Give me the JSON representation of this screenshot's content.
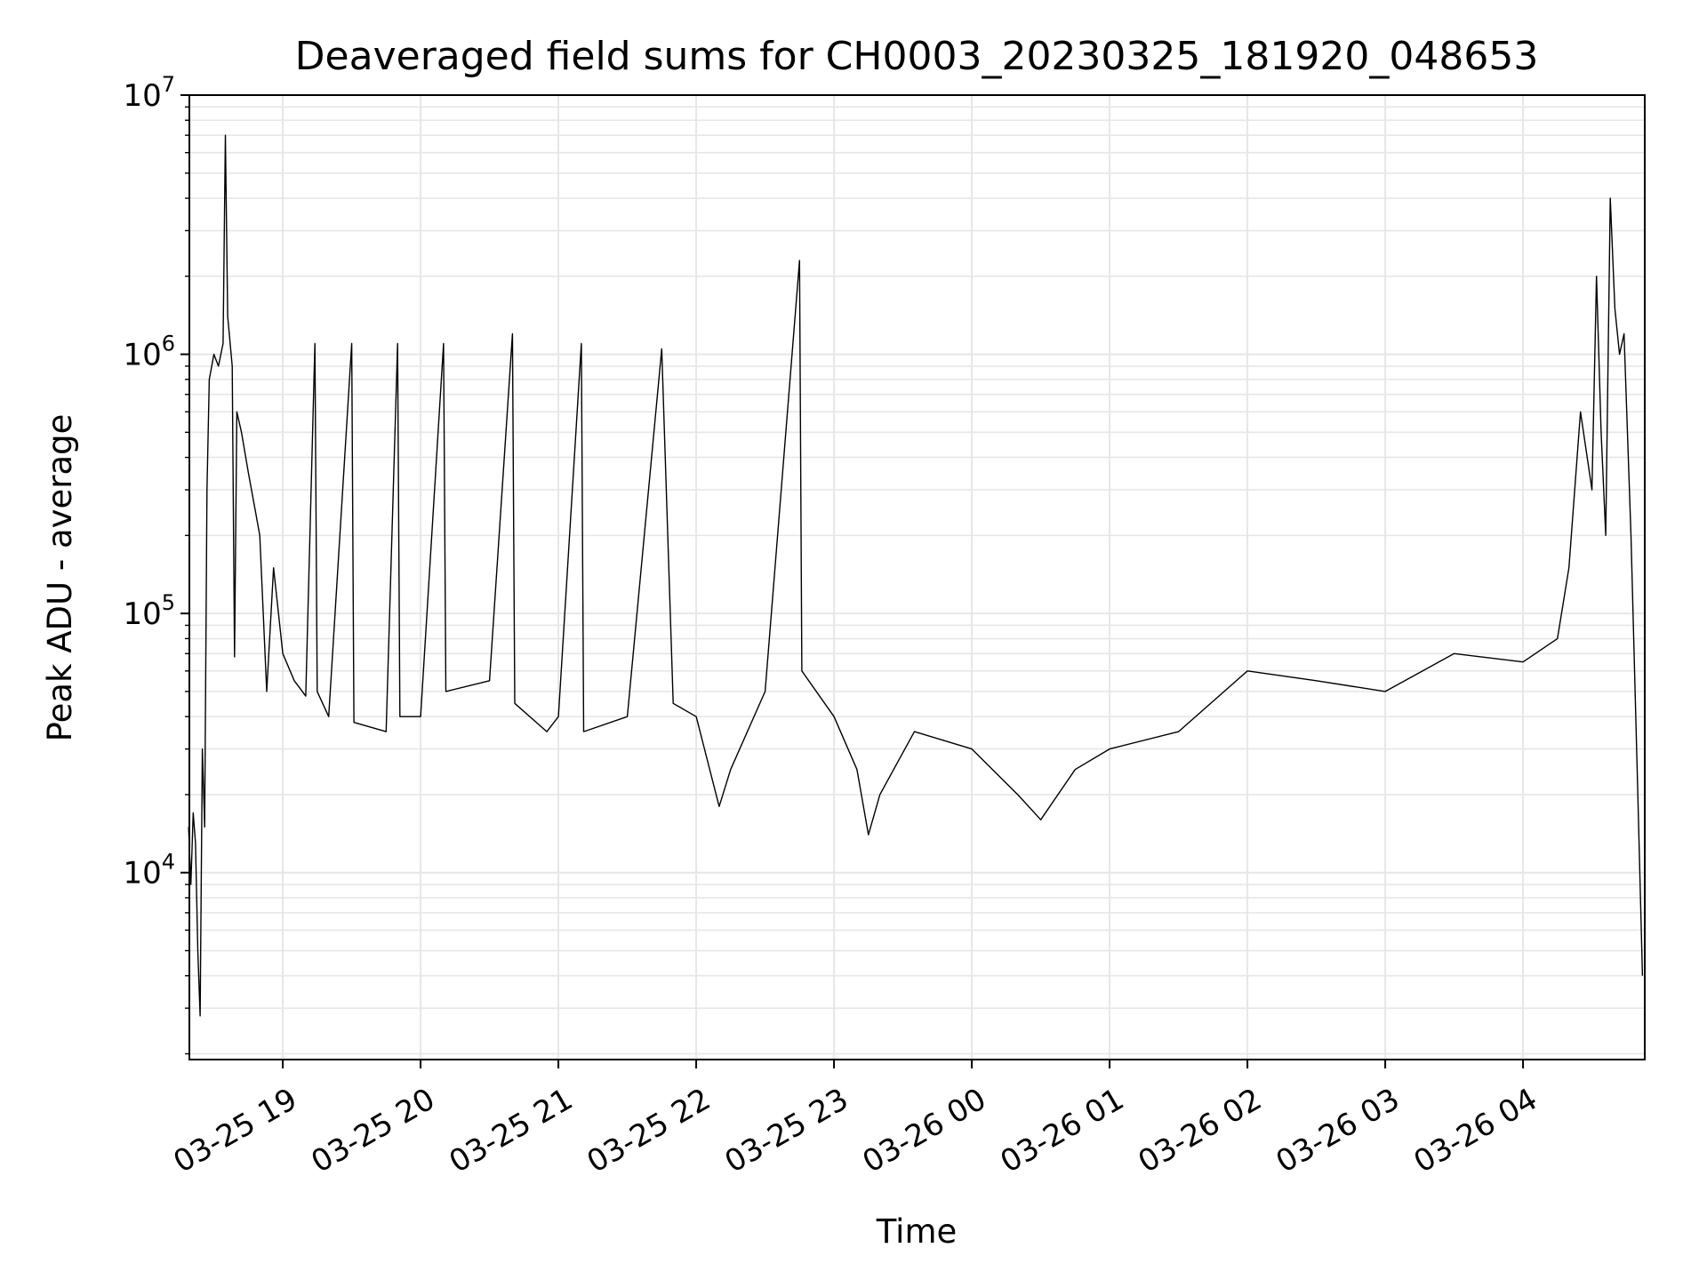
{
  "chart_data": {
    "type": "line",
    "title": "Deaveraged field sums for CH0003_20230325_181920_048653",
    "xlabel": "Time",
    "ylabel": "Peak ADU - average",
    "yscale": "log",
    "ylim": [
      1900,
      10000000
    ],
    "xlim": [
      "2023-03-25 18:19:20",
      "2023-03-26 04:53:00"
    ],
    "grid": "major and minor, light gray",
    "line_color": "#000000",
    "x_ticks": [
      {
        "at": "2023-03-25 19:00",
        "label": "03-25 19"
      },
      {
        "at": "2023-03-25 20:00",
        "label": "03-25 20"
      },
      {
        "at": "2023-03-25 21:00",
        "label": "03-25 21"
      },
      {
        "at": "2023-03-25 22:00",
        "label": "03-25 22"
      },
      {
        "at": "2023-03-25 23:00",
        "label": "03-25 23"
      },
      {
        "at": "2023-03-26 00:00",
        "label": "03-26 00"
      },
      {
        "at": "2023-03-26 01:00",
        "label": "03-26 01"
      },
      {
        "at": "2023-03-26 02:00",
        "label": "03-26 02"
      },
      {
        "at": "2023-03-26 03:00",
        "label": "03-26 03"
      },
      {
        "at": "2023-03-26 04:00",
        "label": "03-26 04"
      }
    ],
    "y_ticks": [
      {
        "value": 10000,
        "base": "10",
        "exp": "4"
      },
      {
        "value": 100000,
        "base": "10",
        "exp": "5"
      },
      {
        "value": 1000000,
        "base": "10",
        "exp": "6"
      },
      {
        "value": 10000000,
        "base": "10",
        "exp": "7"
      }
    ],
    "series": [
      {
        "points": [
          [
            "2023-03-25 18:19",
            15000
          ],
          [
            "2023-03-25 18:20",
            9000
          ],
          [
            "2023-03-25 18:21",
            17000
          ],
          [
            "2023-03-25 18:22",
            13000
          ],
          [
            "2023-03-25 18:23",
            5000
          ],
          [
            "2023-03-25 18:24",
            2800
          ],
          [
            "2023-03-25 18:25",
            30000
          ],
          [
            "2023-03-25 18:26",
            15000
          ],
          [
            "2023-03-25 18:27",
            300000
          ],
          [
            "2023-03-25 18:28",
            800000
          ],
          [
            "2023-03-25 18:30",
            1000000
          ],
          [
            "2023-03-25 18:32",
            900000
          ],
          [
            "2023-03-25 18:34",
            1100000
          ],
          [
            "2023-03-25 18:35",
            7000000
          ],
          [
            "2023-03-25 18:36",
            1400000
          ],
          [
            "2023-03-25 18:38",
            900000
          ],
          [
            "2023-03-25 18:39",
            68000
          ],
          [
            "2023-03-25 18:40",
            600000
          ],
          [
            "2023-03-25 18:42",
            500000
          ],
          [
            "2023-03-25 18:45",
            350000
          ],
          [
            "2023-03-25 18:48",
            250000
          ],
          [
            "2023-03-25 18:50",
            200000
          ],
          [
            "2023-03-25 18:53",
            50000
          ],
          [
            "2023-03-25 18:56",
            150000
          ],
          [
            "2023-03-25 19:00",
            70000
          ],
          [
            "2023-03-25 19:05",
            55000
          ],
          [
            "2023-03-25 19:10",
            48000
          ],
          [
            "2023-03-25 19:14",
            1100000
          ],
          [
            "2023-03-25 19:15",
            50000
          ],
          [
            "2023-03-25 19:20",
            40000
          ],
          [
            "2023-03-25 19:30",
            1100000
          ],
          [
            "2023-03-25 19:31",
            38000
          ],
          [
            "2023-03-25 19:45",
            35000
          ],
          [
            "2023-03-25 19:50",
            1100000
          ],
          [
            "2023-03-25 19:51",
            40000
          ],
          [
            "2023-03-25 20:00",
            40000
          ],
          [
            "2023-03-25 20:10",
            1100000
          ],
          [
            "2023-03-25 20:11",
            50000
          ],
          [
            "2023-03-25 20:30",
            55000
          ],
          [
            "2023-03-25 20:40",
            1200000
          ],
          [
            "2023-03-25 20:41",
            45000
          ],
          [
            "2023-03-25 20:55",
            35000
          ],
          [
            "2023-03-25 21:00",
            40000
          ],
          [
            "2023-03-25 21:10",
            1100000
          ],
          [
            "2023-03-25 21:11",
            35000
          ],
          [
            "2023-03-25 21:30",
            40000
          ],
          [
            "2023-03-25 21:45",
            1050000
          ],
          [
            "2023-03-25 21:50",
            45000
          ],
          [
            "2023-03-25 22:00",
            40000
          ],
          [
            "2023-03-25 22:10",
            18000
          ],
          [
            "2023-03-25 22:15",
            25000
          ],
          [
            "2023-03-25 22:30",
            50000
          ],
          [
            "2023-03-25 22:45",
            2300000
          ],
          [
            "2023-03-25 22:46",
            60000
          ],
          [
            "2023-03-25 23:00",
            40000
          ],
          [
            "2023-03-25 23:10",
            25000
          ],
          [
            "2023-03-25 23:15",
            14000
          ],
          [
            "2023-03-25 23:20",
            20000
          ],
          [
            "2023-03-25 23:35",
            35000
          ],
          [
            "2023-03-26 00:00",
            30000
          ],
          [
            "2023-03-26 00:20",
            20000
          ],
          [
            "2023-03-26 00:30",
            16000
          ],
          [
            "2023-03-26 00:45",
            25000
          ],
          [
            "2023-03-26 01:00",
            30000
          ],
          [
            "2023-03-26 01:30",
            35000
          ],
          [
            "2023-03-26 02:00",
            60000
          ],
          [
            "2023-03-26 02:30",
            55000
          ],
          [
            "2023-03-26 03:00",
            50000
          ],
          [
            "2023-03-26 03:30",
            70000
          ],
          [
            "2023-03-26 04:00",
            65000
          ],
          [
            "2023-03-26 04:15",
            80000
          ],
          [
            "2023-03-26 04:20",
            150000
          ],
          [
            "2023-03-26 04:25",
            600000
          ],
          [
            "2023-03-26 04:30",
            300000
          ],
          [
            "2023-03-26 04:32",
            2000000
          ],
          [
            "2023-03-26 04:34",
            500000
          ],
          [
            "2023-03-26 04:36",
            200000
          ],
          [
            "2023-03-26 04:38",
            4000000
          ],
          [
            "2023-03-26 04:40",
            1500000
          ],
          [
            "2023-03-26 04:42",
            1000000
          ],
          [
            "2023-03-26 04:44",
            1200000
          ],
          [
            "2023-03-26 04:47",
            200000
          ],
          [
            "2023-03-26 04:50",
            20000
          ],
          [
            "2023-03-26 04:52",
            4000
          ]
        ]
      }
    ]
  }
}
